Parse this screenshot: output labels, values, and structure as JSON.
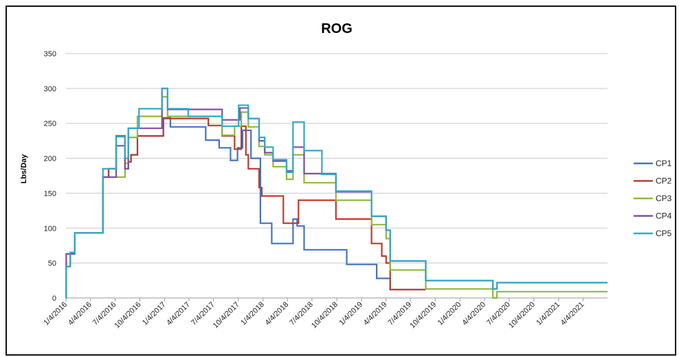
{
  "chart_data": {
    "type": "line",
    "title": "ROG",
    "xlabel": "",
    "ylabel": "Lbs/Day",
    "ylim": [
      0,
      350
    ],
    "yticks": [
      0,
      50,
      100,
      150,
      200,
      250,
      300,
      350
    ],
    "xlim": [
      "2016-01-04",
      "2021-07-04"
    ],
    "xticks": [
      "1/4/2016",
      "4/4/2016",
      "7/4/2016",
      "10/4/2016",
      "1/4/2017",
      "4/4/2017",
      "7/4/2017",
      "10/4/2017",
      "1/4/2018",
      "4/4/2018",
      "7/4/2018",
      "10/4/2018",
      "1/4/2019",
      "4/4/2019",
      "7/4/2019",
      "10/4/2019",
      "1/4/2020",
      "4/4/2020",
      "7/4/2020",
      "10/4/2020",
      "1/4/2021",
      "4/4/2021"
    ],
    "grid": "horizontal",
    "legend_position": "right",
    "step": true,
    "series": [
      {
        "name": "CP1",
        "color": "#4472C4",
        "points": [
          [
            "2016-01-04",
            0
          ],
          [
            "2016-01-05",
            45
          ],
          [
            "2016-01-20",
            65
          ],
          [
            "2016-02-05",
            93
          ],
          [
            "2016-05-20",
            173
          ],
          [
            "2016-06-10",
            185
          ],
          [
            "2016-07-08",
            232
          ],
          [
            "2016-08-10",
            185
          ],
          [
            "2016-08-22",
            195
          ],
          [
            "2016-09-01",
            205
          ],
          [
            "2016-09-25",
            232
          ],
          [
            "2016-12-30",
            258
          ],
          [
            "2017-01-25",
            245
          ],
          [
            "2017-06-05",
            226
          ],
          [
            "2017-07-25",
            215
          ],
          [
            "2017-09-05",
            197
          ],
          [
            "2017-10-01",
            215
          ],
          [
            "2017-10-20",
            240
          ],
          [
            "2017-11-20",
            200
          ],
          [
            "2017-12-25",
            107
          ],
          [
            "2018-02-05",
            78
          ],
          [
            "2018-04-25",
            113
          ],
          [
            "2018-05-10",
            103
          ],
          [
            "2018-06-05",
            69
          ],
          [
            "2018-11-10",
            48
          ],
          [
            "2019-03-01",
            28
          ],
          [
            "2019-04-20",
            12
          ],
          [
            "2019-08-30",
            12
          ]
        ]
      },
      {
        "name": "CP2",
        "color": "#C0392B",
        "points": [
          [
            "2016-01-04",
            0
          ],
          [
            "2016-01-05",
            45
          ],
          [
            "2016-01-20",
            65
          ],
          [
            "2016-02-05",
            93
          ],
          [
            "2016-05-20",
            173
          ],
          [
            "2016-06-10",
            185
          ],
          [
            "2016-07-08",
            232
          ],
          [
            "2016-08-10",
            185
          ],
          [
            "2016-08-22",
            195
          ],
          [
            "2016-09-01",
            205
          ],
          [
            "2016-09-25",
            232
          ],
          [
            "2016-12-30",
            257
          ],
          [
            "2017-06-15",
            247
          ],
          [
            "2017-08-05",
            232
          ],
          [
            "2017-09-20",
            213
          ],
          [
            "2017-10-15",
            246
          ],
          [
            "2017-11-01",
            205
          ],
          [
            "2017-11-10",
            185
          ],
          [
            "2017-12-20",
            158
          ],
          [
            "2017-12-30",
            146
          ],
          [
            "2018-03-20",
            107
          ],
          [
            "2018-05-15",
            140
          ],
          [
            "2018-10-01",
            113
          ],
          [
            "2019-02-10",
            78
          ],
          [
            "2019-03-20",
            60
          ],
          [
            "2019-04-05",
            50
          ],
          [
            "2019-04-20",
            12
          ],
          [
            "2019-08-30",
            12
          ]
        ]
      },
      {
        "name": "CP3",
        "color": "#8DB93D",
        "points": [
          [
            "2016-01-04",
            0
          ],
          [
            "2016-01-05",
            63
          ],
          [
            "2016-01-20",
            63
          ],
          [
            "2016-02-05",
            93
          ],
          [
            "2016-05-20",
            173
          ],
          [
            "2016-08-10",
            193
          ],
          [
            "2016-08-22",
            230
          ],
          [
            "2016-09-25",
            260
          ],
          [
            "2016-12-25",
            288
          ],
          [
            "2017-01-15",
            260
          ],
          [
            "2017-08-05",
            233
          ],
          [
            "2017-09-20",
            246
          ],
          [
            "2017-10-15",
            266
          ],
          [
            "2017-11-10",
            245
          ],
          [
            "2017-12-20",
            217
          ],
          [
            "2018-01-10",
            205
          ],
          [
            "2018-02-10",
            188
          ],
          [
            "2018-04-01",
            170
          ],
          [
            "2018-04-25",
            205
          ],
          [
            "2018-06-05",
            165
          ],
          [
            "2018-10-01",
            140
          ],
          [
            "2019-02-10",
            105
          ],
          [
            "2019-04-05",
            85
          ],
          [
            "2019-04-20",
            40
          ],
          [
            "2019-08-30",
            13
          ],
          [
            "2020-05-05",
            0
          ],
          [
            "2020-05-20",
            9
          ],
          [
            "2021-07-04",
            9
          ]
        ]
      },
      {
        "name": "CP4",
        "color": "#7B52A3",
        "points": [
          [
            "2016-01-04",
            0
          ],
          [
            "2016-01-05",
            63
          ],
          [
            "2016-01-20",
            63
          ],
          [
            "2016-02-05",
            93
          ],
          [
            "2016-05-20",
            173
          ],
          [
            "2016-07-08",
            218
          ],
          [
            "2016-08-10",
            185
          ],
          [
            "2016-08-22",
            243
          ],
          [
            "2016-12-25",
            300
          ],
          [
            "2017-01-15",
            270
          ],
          [
            "2017-08-05",
            255
          ],
          [
            "2017-09-10",
            255
          ],
          [
            "2017-10-10",
            272
          ],
          [
            "2017-11-10",
            257
          ],
          [
            "2017-12-20",
            225
          ],
          [
            "2018-01-10",
            208
          ],
          [
            "2018-02-10",
            196
          ],
          [
            "2018-04-01",
            182
          ],
          [
            "2018-04-25",
            216
          ],
          [
            "2018-06-05",
            178
          ],
          [
            "2018-10-01",
            152
          ],
          [
            "2019-02-10",
            117
          ],
          [
            "2019-04-05",
            97
          ],
          [
            "2019-04-20",
            53
          ],
          [
            "2019-08-30",
            25
          ],
          [
            "2020-05-05",
            13
          ],
          [
            "2020-05-20",
            22
          ],
          [
            "2021-07-04",
            22
          ]
        ]
      },
      {
        "name": "CP5",
        "color": "#31A8C8",
        "points": [
          [
            "2016-01-04",
            0
          ],
          [
            "2016-01-05",
            45
          ],
          [
            "2016-01-20",
            65
          ],
          [
            "2016-02-05",
            93
          ],
          [
            "2016-05-20",
            185
          ],
          [
            "2016-07-08",
            231
          ],
          [
            "2016-08-10",
            200
          ],
          [
            "2016-08-22",
            243
          ],
          [
            "2016-10-01",
            271
          ],
          [
            "2016-12-25",
            300
          ],
          [
            "2017-01-15",
            271
          ],
          [
            "2017-04-01",
            260
          ],
          [
            "2017-08-05",
            246
          ],
          [
            "2017-10-05",
            276
          ],
          [
            "2017-11-10",
            257
          ],
          [
            "2017-12-20",
            230
          ],
          [
            "2018-01-10",
            216
          ],
          [
            "2018-02-10",
            198
          ],
          [
            "2018-04-01",
            180
          ],
          [
            "2018-04-25",
            252
          ],
          [
            "2018-06-05",
            211
          ],
          [
            "2018-08-10",
            177
          ],
          [
            "2018-10-01",
            153
          ],
          [
            "2019-02-10",
            117
          ],
          [
            "2019-04-05",
            97
          ],
          [
            "2019-04-20",
            53
          ],
          [
            "2019-08-30",
            25
          ],
          [
            "2020-05-05",
            13
          ],
          [
            "2020-05-20",
            22
          ],
          [
            "2021-07-04",
            22
          ]
        ]
      }
    ]
  }
}
